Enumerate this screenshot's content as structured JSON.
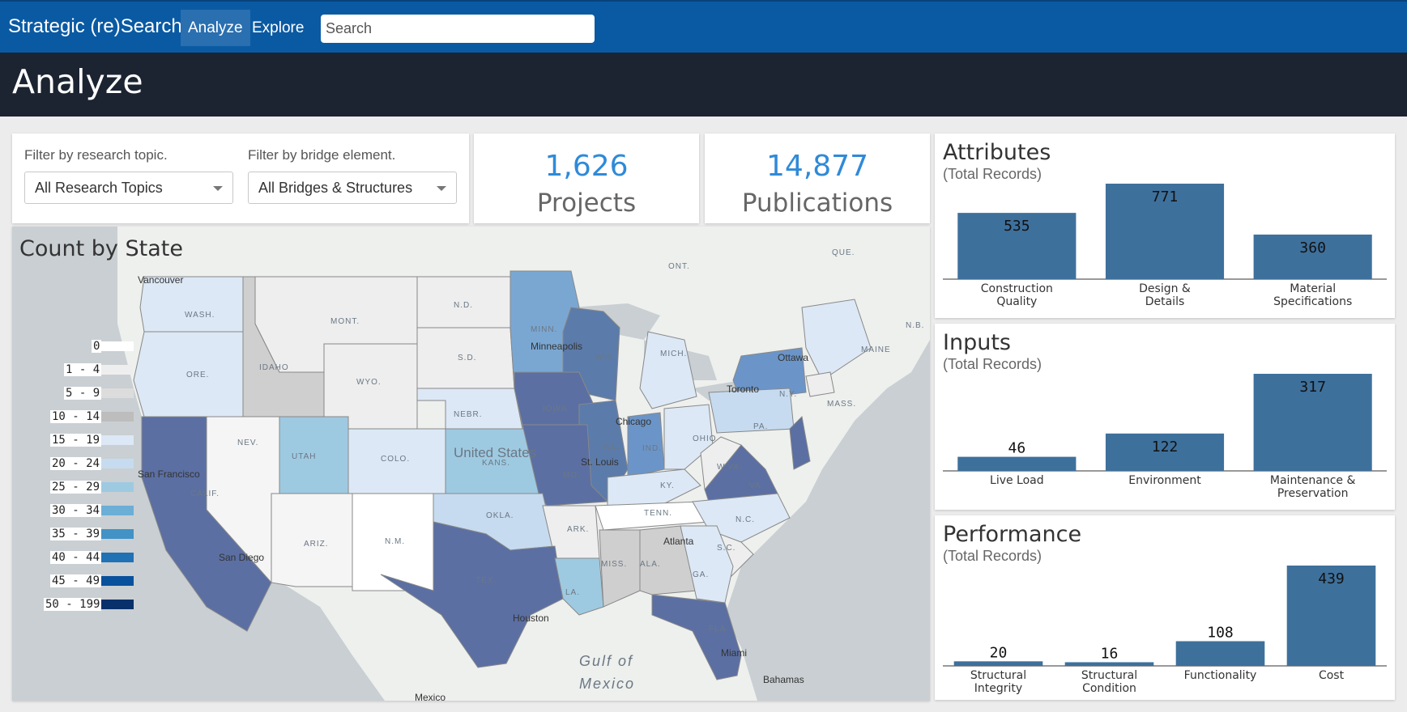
{
  "nav": {
    "brand": "Strategic (re)Search",
    "items": [
      {
        "label": "Analyze",
        "active": true
      },
      {
        "label": "Explore",
        "active": false
      }
    ],
    "search_placeholder": "Search"
  },
  "header": {
    "title": "Analyze"
  },
  "filters": {
    "topic_label": "Filter by research topic.",
    "topic_value": "All Research Topics",
    "element_label": "Filter by bridge element.",
    "element_value": "All Bridges & Structures"
  },
  "stats": [
    {
      "value": "1,626",
      "label": "Projects"
    },
    {
      "value": "14,877",
      "label": "Publications"
    }
  ],
  "map": {
    "title": "Count by State",
    "legend": [
      {
        "label": "0",
        "color": "#ffffff"
      },
      {
        "label": "1 - 4",
        "color": "#eeeeee"
      },
      {
        "label": "5 - 9",
        "color": "#dcdcdc"
      },
      {
        "label": "10 - 14",
        "color": "#bdbdbd"
      },
      {
        "label": "15 - 19",
        "color": "#dce8f5"
      },
      {
        "label": "20 - 24",
        "color": "#c6dbef"
      },
      {
        "label": "25 - 29",
        "color": "#9ecae1"
      },
      {
        "label": "30 - 34",
        "color": "#6baed6"
      },
      {
        "label": "35 - 39",
        "color": "#4292c6"
      },
      {
        "label": "40 - 44",
        "color": "#2171b5"
      },
      {
        "label": "45 - 49",
        "color": "#08519c"
      },
      {
        "label": "50 - 199",
        "color": "#08306b"
      }
    ],
    "region_labels": [
      "WASH.",
      "MONT.",
      "N.D.",
      "MINN.",
      "ONT.",
      "QUE.",
      "N.B.",
      "MAINE",
      "ORE.",
      "IDAHO",
      "WYO.",
      "S.D.",
      "WIS.",
      "MICH.",
      "N.Y.",
      "NEV.",
      "UTAH",
      "COLO.",
      "NEBR.",
      "IOWA",
      "ILL.",
      "IND.",
      "OHIO",
      "PA.",
      "CALIF.",
      "KANS.",
      "MO.",
      "KY.",
      "W.VA.",
      "VA.",
      "ARIZ.",
      "N.M.",
      "OKLA.",
      "ARK.",
      "TENN.",
      "N.C.",
      "S.C.",
      "TEX.",
      "LA.",
      "MISS.",
      "ALA.",
      "GA.",
      "FLA.",
      "MASS."
    ],
    "city_labels": [
      "Vancouver",
      "Minneapolis",
      "Ottawa",
      "Toronto",
      "Chicago",
      "St. Louis",
      "San Francisco",
      "San Diego",
      "Atlanta",
      "Houston",
      "Miami",
      "Bahamas"
    ],
    "country_label": "United States",
    "gulf_label_1": "Gulf of",
    "gulf_label_2": "Mexico",
    "mexico_label": "Mexico"
  },
  "charts": [
    {
      "title": "Attributes",
      "subtitle": "(Total Records)",
      "chart_data": {
        "type": "bar",
        "categories": [
          "Construction Quality",
          "Design & Details",
          "Material Specifications"
        ],
        "category_lines": [
          [
            "Construction",
            "Quality"
          ],
          [
            "Design &",
            "Details"
          ],
          [
            "Material",
            "Specifications"
          ]
        ],
        "values": [
          535,
          771,
          360
        ],
        "color": "#3e709c"
      }
    },
    {
      "title": "Inputs",
      "subtitle": "(Total Records)",
      "chart_data": {
        "type": "bar",
        "categories": [
          "Live Load",
          "Environment",
          "Maintenance & Preservation"
        ],
        "category_lines": [
          [
            "Live Load"
          ],
          [
            "Environment"
          ],
          [
            "Maintenance &",
            "Preservation"
          ]
        ],
        "values": [
          46,
          122,
          317
        ],
        "color": "#3e709c"
      }
    },
    {
      "title": "Performance",
      "subtitle": "(Total Records)",
      "chart_data": {
        "type": "bar",
        "categories": [
          "Structural Integrity",
          "Structural Condition",
          "Functionality",
          "Cost"
        ],
        "category_lines": [
          [
            "Structural",
            "Integrity"
          ],
          [
            "Structural",
            "Condition"
          ],
          [
            "Functionality"
          ],
          [
            "Cost"
          ]
        ],
        "values": [
          20,
          16,
          108,
          439
        ],
        "color": "#3e709c"
      }
    }
  ]
}
